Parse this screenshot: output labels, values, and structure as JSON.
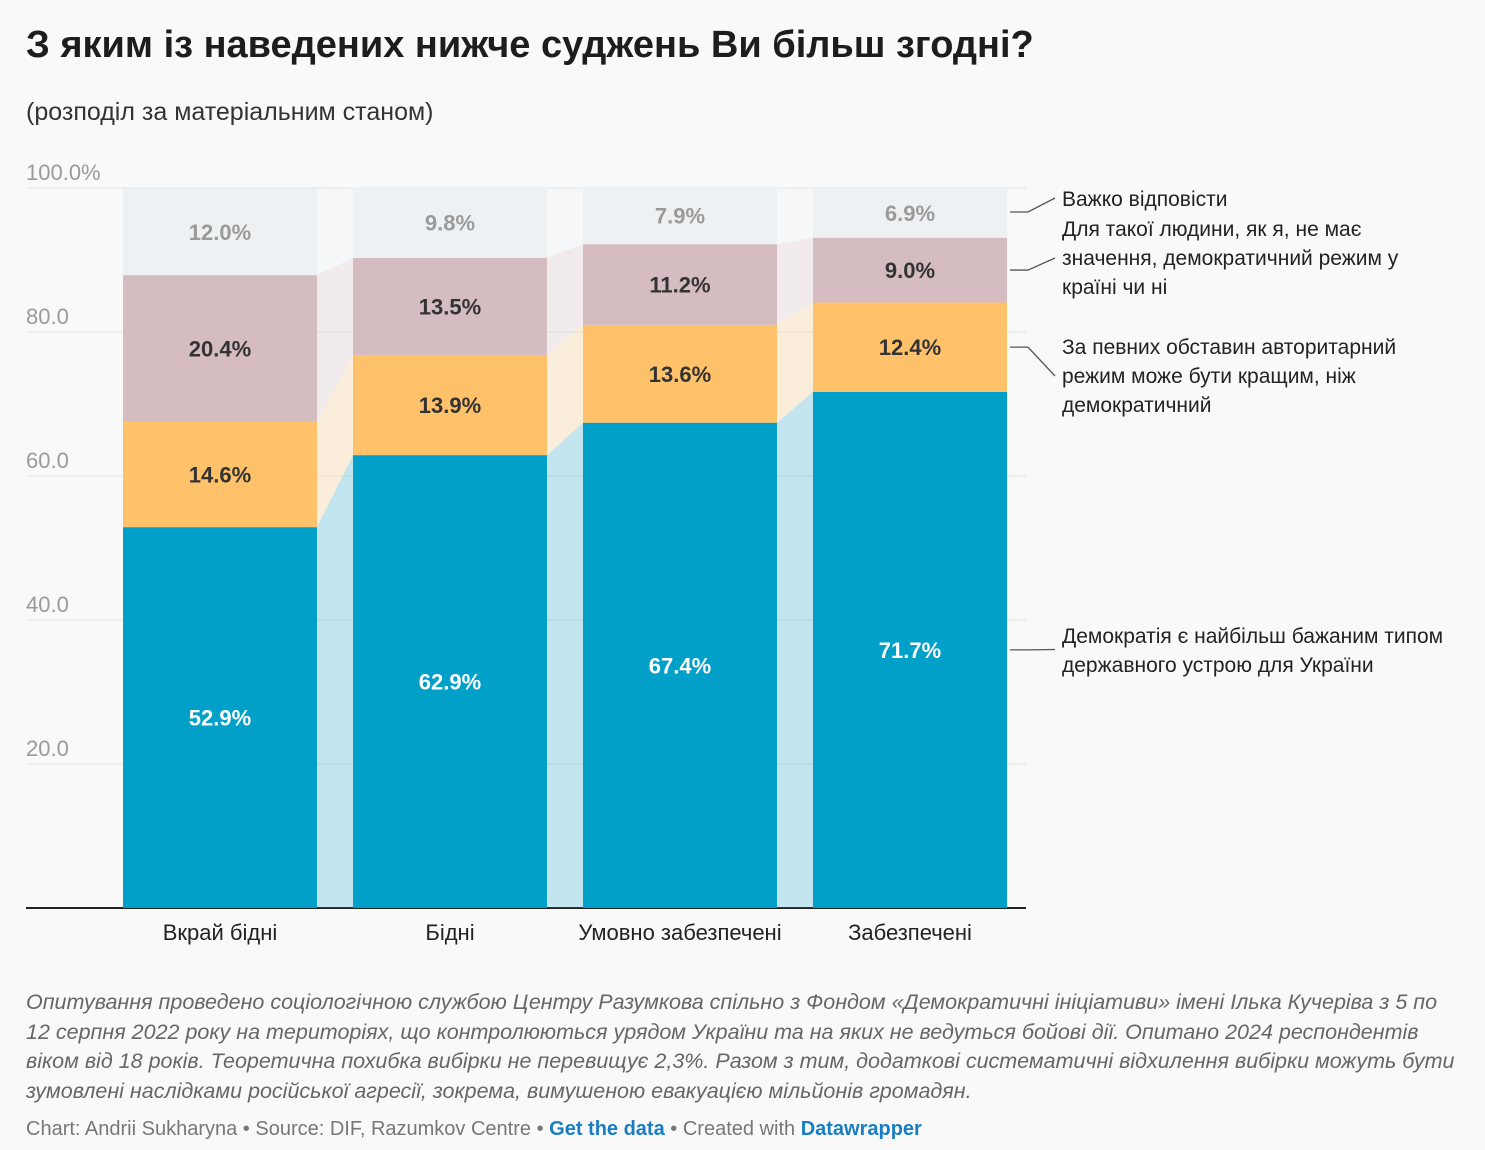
{
  "title": "З яким із наведених нижче суджень Ви більш згодні?",
  "subtitle": "(розподіл за матеріальним станом)",
  "chart_data": {
    "type": "bar",
    "stacked": true,
    "categories": [
      "Вкрай бідні",
      "Бідні",
      "Умовно забезпечені",
      "Забезпечені"
    ],
    "series": [
      {
        "name": "Демократія є найбільш бажаним типом державного устрою для України",
        "values": [
          52.9,
          62.9,
          67.4,
          71.7
        ],
        "labels": [
          "52.9%",
          "62.9%",
          "67.4%",
          "71.7%"
        ],
        "color": "#00a0c8",
        "label_color": "#ffffff"
      },
      {
        "name": "За певних обставин авторитарний режим може бути кращим, ніж демократичний",
        "values": [
          14.6,
          13.9,
          13.6,
          12.4
        ],
        "labels": [
          "14.6%",
          "13.9%",
          "13.6%",
          "12.4%"
        ],
        "color": "#ffc26b",
        "label_color": "#333333"
      },
      {
        "name": "Для такої людини, як я, не має значення, демократичний режим у країні чи ні",
        "values": [
          20.4,
          13.5,
          11.2,
          9.0
        ],
        "labels": [
          "20.4%",
          "13.5%",
          "11.2%",
          "9.0%"
        ],
        "color": "#d4bcc1",
        "label_color": "#333333"
      },
      {
        "name": "Важко відповісти",
        "values": [
          12.0,
          9.8,
          7.9,
          6.9
        ],
        "labels": [
          "12.0%",
          "9.8%",
          "7.9%",
          "6.9%"
        ],
        "color": "#eef1f4",
        "label_color": "#9a9a9a"
      }
    ],
    "yticks": [
      "100.0%",
      "80.0",
      "60.0",
      "40.0",
      "20.0"
    ],
    "ytick_values": [
      100,
      80,
      60,
      40,
      20
    ],
    "ylim": [
      0,
      100
    ],
    "grid": true,
    "legend_placement": "right, labels beside each segment"
  },
  "legend": [
    {
      "lines": [
        "Важко відповісти"
      ]
    },
    {
      "lines": [
        "Для такої людини, як я, не має",
        "значення, демократичний режим у",
        "країні чи ні"
      ]
    },
    {
      "lines": [
        "За певних обставин авторитарний",
        "режим може бути кращим, ніж",
        "демократичний"
      ]
    },
    {
      "lines": [
        "Демократія є найбільш бажаним типом",
        "державного устрою для України"
      ]
    }
  ],
  "notes": "Опитування проведено соціологічною службою Центру Разумкова спільно з Фондом «Демократичні ініціативи» імені Ілька Кучеріва з 5 по 12 серпня 2022 року на територіях, що контролюються урядом України та на яких не ведуться бойові дії. Опитано 2024 респондентів віком від 18 років. Теоретична похибка вибірки не перевищує 2,3%. Разом з тим, додаткові систематичні відхилення вибірки можуть бути зумовлені наслідками російської агресії, зокрема, вимушеною евакуацією мільйонів громадян.",
  "footer": {
    "chart_credit": "Chart: Andrii Sukharyna",
    "sep": " • ",
    "source": "Source: DIF, Razumkov Centre",
    "get_data": "Get the data",
    "created": "Created with",
    "tool": "Datawrapper"
  }
}
